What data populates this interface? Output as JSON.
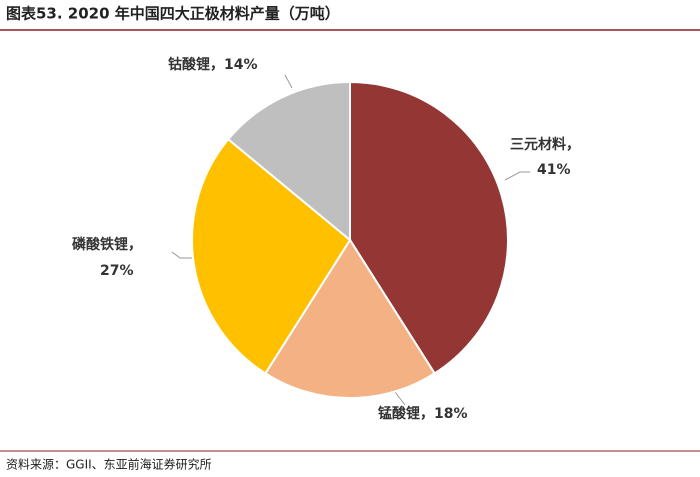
{
  "chart_data": {
    "type": "pie",
    "title": "图表53. 2020 年中国四大正极材料产量（万吨）",
    "categories": [
      "三元材料",
      "锰酸锂",
      "磷酸铁锂",
      "钴酸锂"
    ],
    "values": [
      41,
      18,
      27,
      14
    ],
    "value_labels": [
      "41%",
      "18%",
      "27%",
      "14%"
    ],
    "label_separator": "，",
    "colors": [
      "#943634",
      "#F4B183",
      "#FFC000",
      "#BFBFBF"
    ],
    "source": "资料来源：GGII、东亚前海证券研究所"
  }
}
